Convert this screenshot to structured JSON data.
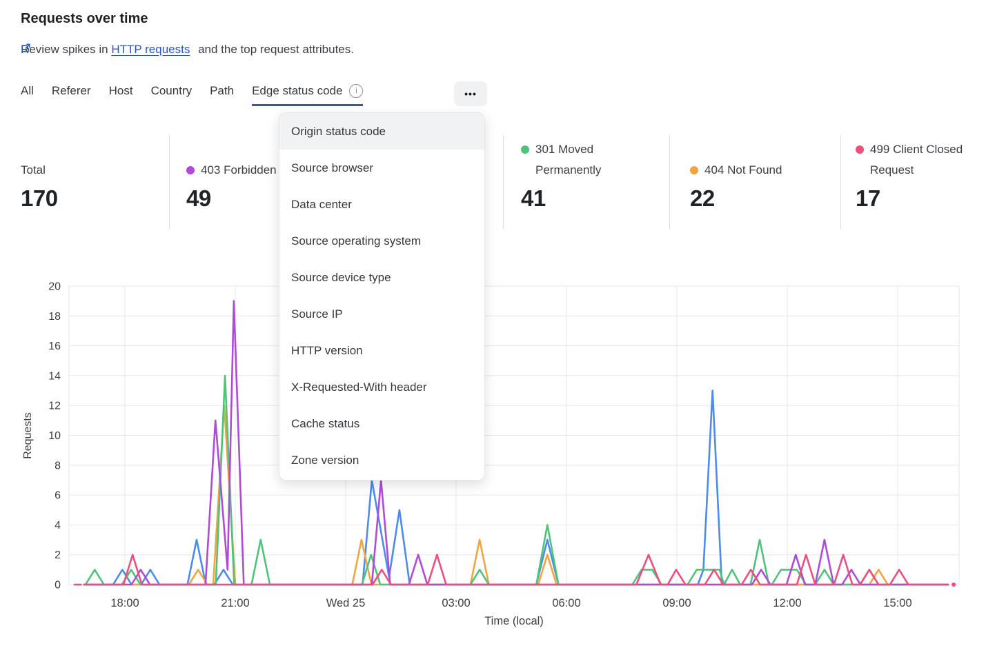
{
  "header": {
    "title": "Requests over time",
    "subtitle_before": "Review spikes in",
    "link_text": "HTTP requests",
    "subtitle_after": "and the top request attributes."
  },
  "tabs": {
    "items": [
      {
        "label": "All",
        "active": false
      },
      {
        "label": "Referer",
        "active": false
      },
      {
        "label": "Host",
        "active": false
      },
      {
        "label": "Country",
        "active": false
      },
      {
        "label": "Path",
        "active": false
      },
      {
        "label": "Edge status code",
        "active": true,
        "has_info_icon": true
      }
    ],
    "more_label": "•••"
  },
  "stats": [
    {
      "label": "Total",
      "value": "170",
      "color": null
    },
    {
      "label": "403 Forbidden",
      "value": "49",
      "color": "#af4ad9"
    },
    {
      "label": "301 Moved Permanently",
      "value": "41",
      "color": "#4dc47a"
    },
    {
      "label": "404 Not Found",
      "value": "22",
      "color": "#f3a43e"
    },
    {
      "label": "499 Client Closed Request",
      "value": "17",
      "color": "#ee4d7e"
    }
  ],
  "dropdown": {
    "highlighted_index": 0,
    "items": [
      "Origin status code",
      "Source browser",
      "Data center",
      "Source operating system",
      "Source device type",
      "Source IP",
      "HTTP version",
      "X-Requested-With header",
      "Cache status",
      "Zone version"
    ]
  },
  "chart_data": {
    "type": "line",
    "title": "Requests over time",
    "xlabel": "Time (local)",
    "ylabel": "Requests",
    "ylim": [
      0,
      20
    ],
    "y_ticks": [
      0,
      2,
      4,
      6,
      8,
      10,
      12,
      14,
      16,
      18,
      20
    ],
    "x_unit": "hours relative to 18:00 local",
    "x_domain": [
      -1.55,
      22.65
    ],
    "x_ticks": [
      {
        "t": 0,
        "label": "18:00"
      },
      {
        "t": 3,
        "label": "21:00"
      },
      {
        "t": 6,
        "label": "Wed 25"
      },
      {
        "t": 9,
        "label": "03:00"
      },
      {
        "t": 12,
        "label": "06:00"
      },
      {
        "t": 15,
        "label": "09:00"
      },
      {
        "t": 18,
        "label": "12:00"
      },
      {
        "t": 21,
        "label": "15:00"
      }
    ],
    "grid": true,
    "legend_position": "top (stat blocks)",
    "series": [
      {
        "name": "unlabeled (legend hidden by menu)",
        "color": "#4b8bf0",
        "points": [
          [
            -1.11,
            0
          ],
          [
            -0.32,
            0
          ],
          [
            -0.07,
            1
          ],
          [
            0.18,
            0
          ],
          [
            0.44,
            0
          ],
          [
            0.69,
            1
          ],
          [
            0.94,
            0
          ],
          [
            1.7,
            0
          ],
          [
            1.95,
            3
          ],
          [
            2.2,
            0
          ],
          [
            2.43,
            0
          ],
          [
            2.68,
            1
          ],
          [
            2.93,
            0
          ],
          [
            6.46,
            0
          ],
          [
            6.71,
            7
          ],
          [
            7.18,
            0.5
          ],
          [
            7.46,
            5
          ],
          [
            7.74,
            0
          ],
          [
            11.18,
            0
          ],
          [
            11.48,
            3
          ],
          [
            11.78,
            0
          ],
          [
            15.57,
            0
          ],
          [
            15.72,
            1
          ],
          [
            15.97,
            13
          ],
          [
            16.22,
            0
          ],
          [
            22.37,
            0
          ]
        ]
      },
      {
        "name": "404 Not Found",
        "color": "#f3a43e",
        "points": [
          [
            -1.11,
            0
          ],
          [
            1.74,
            0
          ],
          [
            1.99,
            1
          ],
          [
            2.24,
            0
          ],
          [
            2.4,
            0
          ],
          [
            2.7,
            12
          ],
          [
            3.0,
            0
          ],
          [
            6.18,
            0
          ],
          [
            6.43,
            3
          ],
          [
            6.7,
            0
          ],
          [
            9.39,
            0
          ],
          [
            9.64,
            3
          ],
          [
            9.89,
            0
          ],
          [
            11.23,
            0
          ],
          [
            11.48,
            2
          ],
          [
            11.73,
            0
          ],
          [
            20.23,
            0
          ],
          [
            20.48,
            1
          ],
          [
            20.73,
            0
          ],
          [
            22.37,
            0
          ]
        ]
      },
      {
        "name": "301 Moved Permanently",
        "color": "#4dc47a",
        "points": [
          [
            -1.11,
            0
          ],
          [
            -1.07,
            0
          ],
          [
            -0.82,
            1
          ],
          [
            -0.57,
            0
          ],
          [
            -0.08,
            0
          ],
          [
            0.17,
            1
          ],
          [
            0.42,
            0
          ],
          [
            2.47,
            0
          ],
          [
            2.72,
            14
          ],
          [
            2.97,
            0
          ],
          [
            3.44,
            0
          ],
          [
            3.69,
            3
          ],
          [
            3.94,
            0
          ],
          [
            6.44,
            0
          ],
          [
            6.69,
            2
          ],
          [
            6.94,
            0
          ],
          [
            9.39,
            0
          ],
          [
            9.64,
            1
          ],
          [
            9.89,
            0
          ],
          [
            11.18,
            0
          ],
          [
            11.48,
            4
          ],
          [
            11.78,
            0
          ],
          [
            13.79,
            0
          ],
          [
            14.04,
            1
          ],
          [
            14.33,
            1
          ],
          [
            14.58,
            0
          ],
          [
            15.29,
            0
          ],
          [
            15.54,
            1
          ],
          [
            16.16,
            1
          ],
          [
            16.28,
            0
          ],
          [
            16.5,
            1
          ],
          [
            16.72,
            0
          ],
          [
            17.0,
            0
          ],
          [
            17.25,
            3
          ],
          [
            17.5,
            0
          ],
          [
            17.58,
            0
          ],
          [
            17.83,
            1
          ],
          [
            18.26,
            1
          ],
          [
            18.51,
            0
          ],
          [
            18.76,
            0
          ],
          [
            19.01,
            1
          ],
          [
            19.26,
            0
          ],
          [
            19.98,
            0
          ],
          [
            20.23,
            1
          ],
          [
            20.48,
            0
          ],
          [
            22.37,
            0
          ]
        ]
      },
      {
        "name": "403 Forbidden",
        "color": "#af4ad9",
        "points": [
          [
            -1.11,
            0
          ],
          [
            0.18,
            0
          ],
          [
            0.43,
            1
          ],
          [
            0.68,
            0
          ],
          [
            2.19,
            0
          ],
          [
            2.46,
            11
          ],
          [
            2.79,
            1
          ],
          [
            2.96,
            19
          ],
          [
            3.23,
            0
          ],
          [
            6.71,
            0
          ],
          [
            6.96,
            7
          ],
          [
            7.21,
            0
          ],
          [
            7.72,
            0
          ],
          [
            7.97,
            2
          ],
          [
            8.22,
            0
          ],
          [
            17.04,
            0
          ],
          [
            17.29,
            1
          ],
          [
            17.54,
            0
          ],
          [
            17.98,
            0
          ],
          [
            18.23,
            2
          ],
          [
            18.48,
            0
          ],
          [
            18.76,
            0
          ],
          [
            19.01,
            3
          ],
          [
            19.26,
            0
          ],
          [
            19.49,
            0
          ],
          [
            19.74,
            1
          ],
          [
            19.99,
            0
          ],
          [
            22.37,
            0
          ]
        ]
      },
      {
        "name": "499 Client Closed Request",
        "color": "#ee4d7e",
        "lead_dash": [
          -1.37,
          -1.19
        ],
        "end_dot_t": 22.52,
        "points": [
          [
            -1.11,
            0
          ],
          [
            -0.04,
            0
          ],
          [
            0.21,
            2
          ],
          [
            0.46,
            0
          ],
          [
            6.73,
            0
          ],
          [
            6.98,
            1
          ],
          [
            7.23,
            0
          ],
          [
            8.23,
            0
          ],
          [
            8.48,
            2
          ],
          [
            8.73,
            0
          ],
          [
            13.9,
            0
          ],
          [
            14.23,
            2
          ],
          [
            14.56,
            0
          ],
          [
            14.75,
            0
          ],
          [
            14.98,
            1
          ],
          [
            15.23,
            0
          ],
          [
            15.76,
            0
          ],
          [
            16.01,
            1
          ],
          [
            16.26,
            0
          ],
          [
            16.76,
            0
          ],
          [
            17.01,
            1
          ],
          [
            17.26,
            0
          ],
          [
            18.26,
            0
          ],
          [
            18.51,
            2
          ],
          [
            18.76,
            0
          ],
          [
            19.27,
            0
          ],
          [
            19.52,
            2
          ],
          [
            19.77,
            0
          ],
          [
            19.98,
            0
          ],
          [
            20.23,
            1
          ],
          [
            20.48,
            0
          ],
          [
            20.79,
            0
          ],
          [
            21.04,
            1
          ],
          [
            21.29,
            0
          ],
          [
            22.37,
            0
          ]
        ]
      }
    ]
  }
}
